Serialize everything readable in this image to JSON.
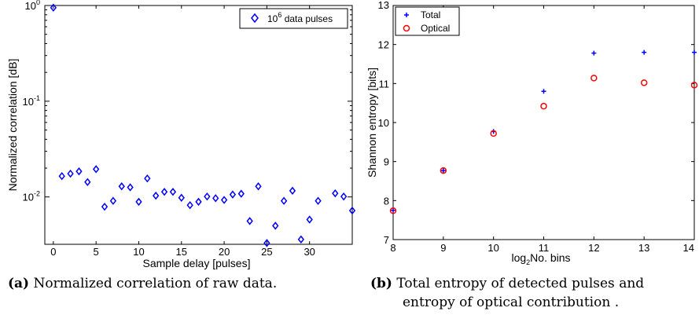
{
  "chart_data": [
    {
      "type": "scatter",
      "xlabel": "Sample delay [pulses]",
      "ylabel": "Normalized correlation [dB]",
      "xlim": [
        -1,
        35
      ],
      "ylim": [
        0.0032,
        1.0
      ],
      "yscale": "log",
      "xticks": [
        0,
        5,
        10,
        15,
        20,
        25,
        30
      ],
      "yticks": [
        {
          "value": 1,
          "base": "10",
          "exp": "0"
        },
        {
          "value": 0.1,
          "base": "10",
          "exp": "-1"
        },
        {
          "value": 0.01,
          "base": "10",
          "exp": "-2"
        }
      ],
      "legend_position": "top-right",
      "series": [
        {
          "name_base": "10",
          "name_exp": "6",
          "name_suffix": " data pulses",
          "marker": "diamond",
          "color": "#0000ff",
          "points": [
            [
              0,
              0.95
            ],
            [
              1,
              0.0165
            ],
            [
              2,
              0.0175
            ],
            [
              3,
              0.0185
            ],
            [
              4,
              0.0143
            ],
            [
              5,
              0.0195
            ],
            [
              6,
              0.0079
            ],
            [
              7,
              0.0091
            ],
            [
              8,
              0.0129
            ],
            [
              9,
              0.0126
            ],
            [
              10,
              0.0089
            ],
            [
              11,
              0.0156
            ],
            [
              12,
              0.0103
            ],
            [
              13,
              0.0113
            ],
            [
              14,
              0.0113
            ],
            [
              15,
              0.0098
            ],
            [
              16,
              0.0082
            ],
            [
              17,
              0.0089
            ],
            [
              18,
              0.0101
            ],
            [
              19,
              0.0097
            ],
            [
              20,
              0.0093
            ],
            [
              21,
              0.0106
            ],
            [
              22,
              0.0108
            ],
            [
              23,
              0.0056
            ],
            [
              24,
              0.0129
            ],
            [
              25,
              0.0033
            ],
            [
              26,
              0.005
            ],
            [
              27,
              0.0091
            ],
            [
              28,
              0.0116
            ],
            [
              29,
              0.0036
            ],
            [
              30,
              0.0058
            ],
            [
              31,
              0.0091
            ],
            [
              33,
              0.0109
            ],
            [
              34,
              0.0101
            ],
            [
              35,
              0.0072
            ]
          ]
        }
      ]
    },
    {
      "type": "scatter",
      "xlabel_pre": "log",
      "xlabel_sub": "2",
      "xlabel_post": "No. bins",
      "ylabel": "Shannon entropy [bits]",
      "xlim": [
        8,
        14
      ],
      "ylim": [
        7,
        13
      ],
      "xticks": [
        8,
        9,
        10,
        11,
        12,
        13,
        14
      ],
      "yticks": [
        7,
        8,
        9,
        10,
        11,
        12,
        13
      ],
      "legend_position": "top-left",
      "series": [
        {
          "name": "Total",
          "marker": "plus",
          "color": "#0000ff",
          "points": [
            [
              8,
              7.75
            ],
            [
              9,
              8.77
            ],
            [
              10,
              9.77
            ],
            [
              11,
              10.8
            ],
            [
              12,
              11.78
            ],
            [
              13,
              11.8
            ],
            [
              14,
              11.8
            ]
          ]
        },
        {
          "name": "Optical",
          "marker": "circle",
          "color": "#ff0000",
          "points": [
            [
              8,
              7.74
            ],
            [
              9,
              8.77
            ],
            [
              10,
              9.72
            ],
            [
              11,
              10.42
            ],
            [
              12,
              11.14
            ],
            [
              13,
              11.02
            ],
            [
              14,
              10.96
            ]
          ]
        }
      ]
    }
  ],
  "captions": [
    {
      "tag": "(a)",
      "text": "Normalized correlation of raw data."
    },
    {
      "tag": "(b)",
      "line1": "Total entropy of detected pulses and",
      "line2": "entropy of optical contribution ."
    }
  ]
}
